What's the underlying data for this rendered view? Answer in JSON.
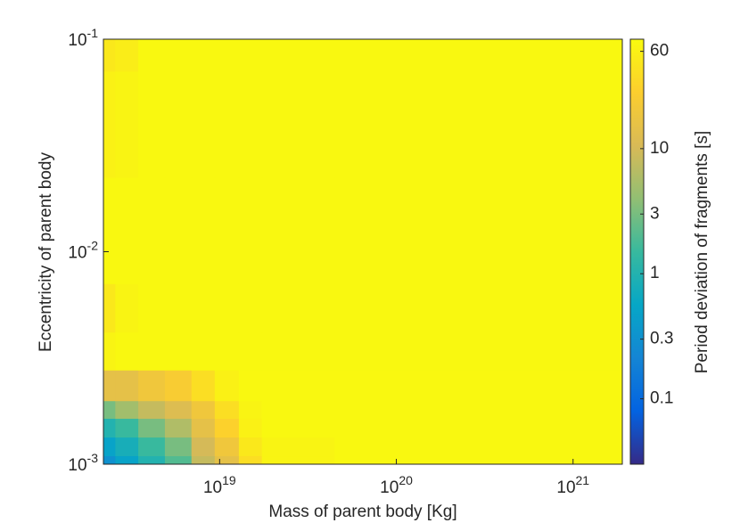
{
  "chart_data": {
    "type": "contour",
    "x_label": "Mass of parent body [Kg]",
    "y_label": "Eccentricity of parent body",
    "colorbar_label": "Period deviation of fragments [s]",
    "x_scale": "log",
    "y_scale": "log",
    "colorbar_scale": "log",
    "xlim": [
      2.2e+18,
      1.9e+21
    ],
    "xticks": [
      {
        "value": 1e+19,
        "label": "10^19"
      },
      {
        "value": 1e+20,
        "label": "10^20"
      },
      {
        "value": 1e+21,
        "label": "10^21"
      }
    ],
    "ylim": [
      0.001,
      0.1
    ],
    "yticks": [
      {
        "value": 0.001,
        "label": "10^-3"
      },
      {
        "value": 0.01,
        "label": "10^-2"
      },
      {
        "value": 0.1,
        "label": "10^-1"
      }
    ],
    "clim": [
      0.03,
      75
    ],
    "cticks": [
      0.1,
      0.3,
      1,
      3,
      10,
      60
    ],
    "colormap": [
      "#352a87",
      "#0363e1",
      "#1485d4",
      "#06a7c6",
      "#38b99e",
      "#92bf73",
      "#d9ba56",
      "#fcce2e",
      "#f9fb0e"
    ],
    "x": [
      2.2e+18,
      3e+18,
      4e+18,
      6e+18,
      8e+18,
      1.1e+19,
      1.5e+19,
      2e+19,
      1e+20,
      1.9e+21
    ],
    "y": [
      0.001,
      0.0012,
      0.0015,
      0.0018,
      0.0022,
      0.0035,
      0.005,
      0.01,
      0.05,
      0.1
    ],
    "z": [
      [
        0.3,
        0.5,
        1,
        2,
        8,
        15,
        40,
        65,
        70,
        70
      ],
      [
        0.5,
        0.8,
        1.5,
        3,
        10,
        20,
        50,
        65,
        70,
        70
      ],
      [
        1,
        1.5,
        3,
        6,
        15,
        30,
        60,
        70,
        70,
        70
      ],
      [
        3,
        5,
        8,
        12,
        20,
        40,
        65,
        70,
        70,
        70
      ],
      [
        15,
        15,
        20,
        25,
        40,
        60,
        70,
        70,
        70,
        70
      ],
      [
        65,
        70,
        70,
        70,
        70,
        70,
        70,
        70,
        70,
        70
      ],
      [
        50,
        65,
        70,
        70,
        70,
        70,
        70,
        70,
        70,
        70
      ],
      [
        70,
        70,
        70,
        70,
        70,
        70,
        70,
        70,
        70,
        70
      ],
      [
        60,
        65,
        70,
        70,
        70,
        70,
        70,
        70,
        70,
        70
      ],
      [
        50,
        55,
        70,
        70,
        70,
        70,
        70,
        70,
        70,
        70
      ]
    ]
  }
}
